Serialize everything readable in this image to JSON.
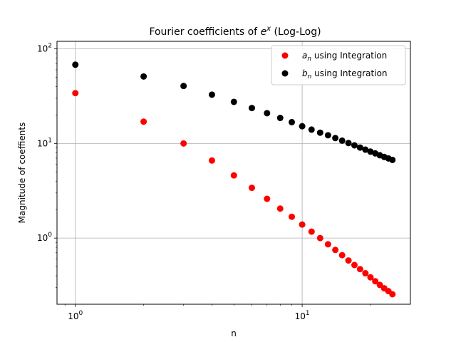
{
  "chart_data": {
    "type": "scatter",
    "title": "Fourier coefficients of e^x (Log-Log)",
    "title_parts": {
      "prefix": "Fourier coefficients of ",
      "base": "e",
      "sup": "x",
      "suffix": " (Log-Log)"
    },
    "xlabel": "n",
    "ylabel": "Magnitude of coeffients",
    "xscale": "log",
    "yscale": "log",
    "xlim": [
      0.83,
      30
    ],
    "ylim": [
      0.2,
      120
    ],
    "x_ticks": [
      {
        "value": 1,
        "base": "10",
        "exp": "0"
      },
      {
        "value": 10,
        "base": "10",
        "exp": "1"
      }
    ],
    "y_ticks": [
      {
        "value": 1,
        "base": "10",
        "exp": "0"
      },
      {
        "value": 10,
        "base": "10",
        "exp": "1"
      },
      {
        "value": 100,
        "base": "10",
        "exp": "2"
      }
    ],
    "grid": true,
    "legend_position": "top-right",
    "series": [
      {
        "name": "a_n using Integration",
        "legend_sym": "a",
        "legend_sub": "n",
        "legend_rest": " using Integration",
        "color": "#ff0000",
        "x": [
          1,
          2,
          3,
          4,
          5,
          6,
          7,
          8,
          9,
          10,
          11,
          12,
          13,
          14,
          15,
          16,
          17,
          18,
          19,
          20,
          21,
          22,
          23,
          24,
          25
        ],
        "y": [
          34.0,
          17.0,
          10.0,
          6.6,
          4.6,
          3.4,
          2.6,
          2.05,
          1.68,
          1.39,
          1.17,
          1.0,
          0.86,
          0.75,
          0.66,
          0.58,
          0.52,
          0.47,
          0.425,
          0.385,
          0.35,
          0.32,
          0.295,
          0.275,
          0.255
        ]
      },
      {
        "name": "b_n using Integration",
        "legend_sym": "b",
        "legend_sub": "n",
        "legend_rest": " using Integration",
        "color": "#000000",
        "x": [
          1,
          2,
          3,
          4,
          5,
          6,
          7,
          8,
          9,
          10,
          11,
          12,
          13,
          14,
          15,
          16,
          17,
          18,
          19,
          20,
          21,
          22,
          23,
          24,
          25
        ],
        "y": [
          68.0,
          51.0,
          40.5,
          32.8,
          27.5,
          23.7,
          20.9,
          18.6,
          16.8,
          15.2,
          14.0,
          13.0,
          12.2,
          11.4,
          10.7,
          10.1,
          9.55,
          9.05,
          8.6,
          8.2,
          7.85,
          7.5,
          7.2,
          6.95,
          6.7
        ]
      }
    ]
  }
}
